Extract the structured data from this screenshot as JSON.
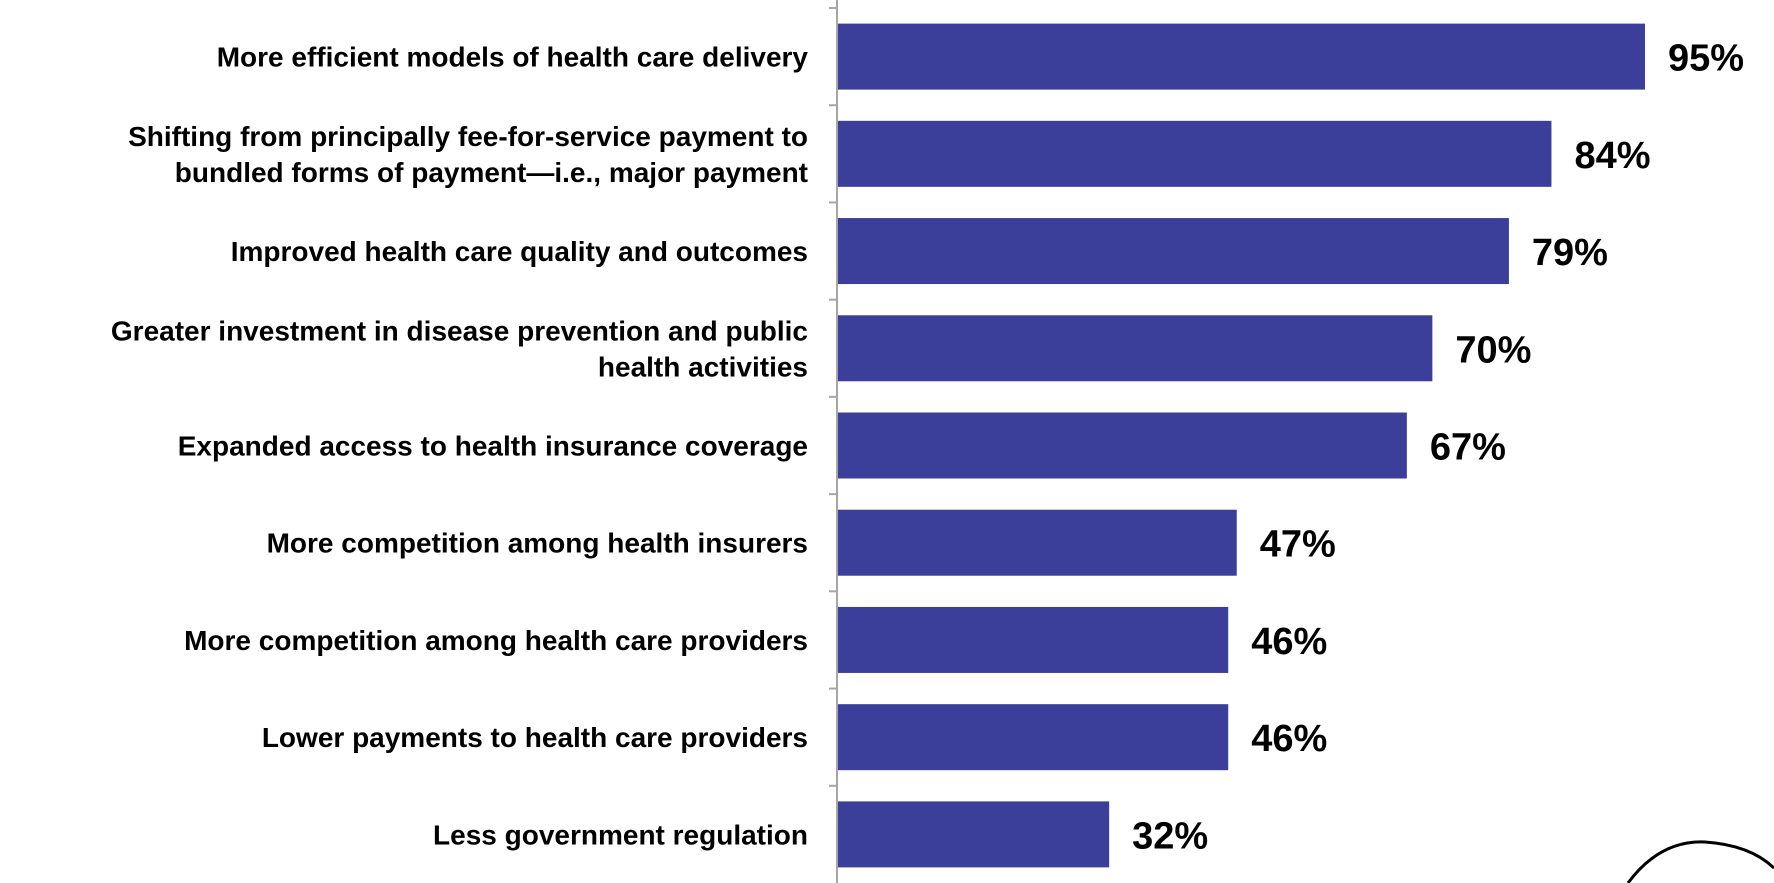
{
  "chart_data": {
    "type": "bar",
    "orientation": "horizontal",
    "categories": [
      [
        "More efficient models of health care delivery"
      ],
      [
        "Shifting from principally fee-for-service payment to",
        "bundled forms of payment—i.e., major payment"
      ],
      [
        "Improved health care quality and outcomes"
      ],
      [
        "Greater investment in disease prevention and public",
        "health activities"
      ],
      [
        "Expanded access to health insurance coverage"
      ],
      [
        "More competition among health insurers"
      ],
      [
        "More competition among health care providers"
      ],
      [
        "Lower payments to health care providers"
      ],
      [
        "Less government regulation"
      ]
    ],
    "values": [
      95,
      84,
      79,
      70,
      67,
      47,
      46,
      46,
      32
    ],
    "value_labels": [
      "95%",
      "84%",
      "79%",
      "70%",
      "67%",
      "47%",
      "46%",
      "46%",
      "32%"
    ],
    "xlim": [
      0,
      100
    ],
    "bar_color": "#3c3f9a",
    "axis_color": "#a6a6a6",
    "grid": false,
    "legend": "none"
  }
}
